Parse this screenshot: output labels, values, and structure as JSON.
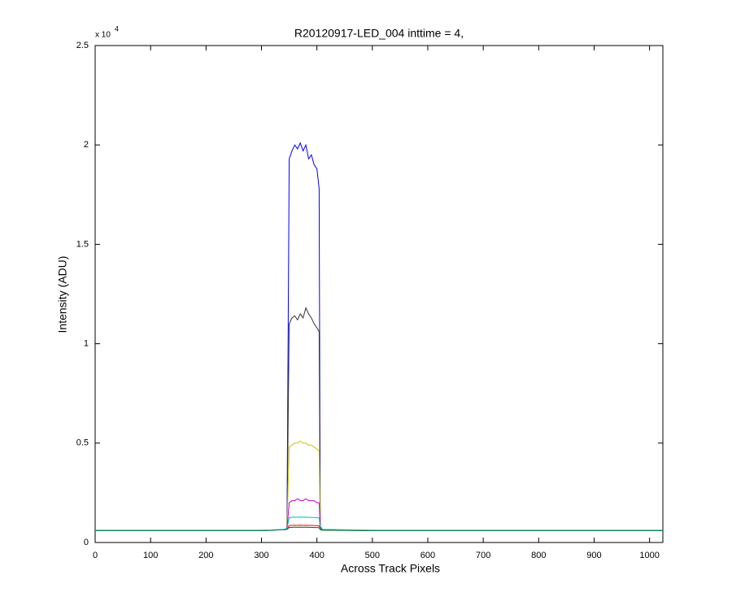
{
  "chart_data": {
    "type": "line",
    "title": "R20120917-LED_004 inttime = 4,",
    "x_label": "Across Track Pixels",
    "y_label": "Intensity (ADU)",
    "y_multiplier": "x 10",
    "y_exponent": "4",
    "x": [
      0,
      100,
      200,
      300,
      340,
      346,
      350,
      355,
      360,
      365,
      370,
      375,
      380,
      385,
      390,
      395,
      400,
      404,
      406,
      410,
      500,
      600,
      700,
      800,
      900,
      1024
    ],
    "series": [
      {
        "color": "#0000ff",
        "values": [
          0.06,
          0.06,
          0.06,
          0.06,
          0.065,
          0.07,
          1.93,
          1.97,
          2.0,
          1.98,
          2.01,
          1.97,
          2.0,
          1.93,
          1.95,
          1.9,
          1.88,
          1.78,
          0.08,
          0.065,
          0.06,
          0.06,
          0.06,
          0.06,
          0.06,
          0.06
        ]
      },
      {
        "color": "#333333",
        "values": [
          0.06,
          0.06,
          0.06,
          0.06,
          0.065,
          0.07,
          1.1,
          1.13,
          1.14,
          1.12,
          1.15,
          1.13,
          1.18,
          1.15,
          1.13,
          1.1,
          1.08,
          1.06,
          0.075,
          0.065,
          0.06,
          0.06,
          0.06,
          0.06,
          0.06,
          0.06
        ]
      },
      {
        "color": "#c8c800",
        "values": [
          0.06,
          0.06,
          0.06,
          0.06,
          0.065,
          0.07,
          0.48,
          0.49,
          0.5,
          0.5,
          0.51,
          0.5,
          0.5,
          0.49,
          0.49,
          0.48,
          0.47,
          0.46,
          0.07,
          0.065,
          0.06,
          0.06,
          0.06,
          0.06,
          0.06,
          0.06
        ]
      },
      {
        "color": "#bf00bf",
        "values": [
          0.06,
          0.06,
          0.06,
          0.06,
          0.065,
          0.07,
          0.2,
          0.21,
          0.21,
          0.22,
          0.21,
          0.21,
          0.22,
          0.21,
          0.21,
          0.21,
          0.2,
          0.2,
          0.07,
          0.065,
          0.06,
          0.06,
          0.06,
          0.06,
          0.06,
          0.06
        ]
      },
      {
        "color": "#ff0000",
        "values": [
          0.06,
          0.06,
          0.06,
          0.06,
          0.065,
          0.068,
          0.085,
          0.086,
          0.087,
          0.086,
          0.087,
          0.086,
          0.087,
          0.086,
          0.086,
          0.085,
          0.085,
          0.084,
          0.066,
          0.063,
          0.06,
          0.06,
          0.06,
          0.06,
          0.06,
          0.06
        ]
      },
      {
        "color": "#006400",
        "values": [
          0.06,
          0.06,
          0.06,
          0.06,
          0.064,
          0.066,
          0.075,
          0.076,
          0.077,
          0.076,
          0.077,
          0.076,
          0.077,
          0.076,
          0.076,
          0.075,
          0.075,
          0.074,
          0.064,
          0.062,
          0.06,
          0.06,
          0.06,
          0.06,
          0.06,
          0.06
        ]
      },
      {
        "color": "#00bfbf",
        "values": [
          0.062,
          0.062,
          0.062,
          0.062,
          0.066,
          0.07,
          0.125,
          0.127,
          0.128,
          0.127,
          0.128,
          0.127,
          0.128,
          0.127,
          0.126,
          0.126,
          0.125,
          0.124,
          0.07,
          0.066,
          0.062,
          0.062,
          0.062,
          0.062,
          0.062,
          0.062
        ]
      }
    ],
    "xlim": [
      0,
      1024
    ],
    "xticks": [
      0,
      100,
      200,
      300,
      400,
      500,
      600,
      700,
      800,
      900,
      1000
    ],
    "ylim": [
      0,
      2.5
    ],
    "yticks": [
      0,
      0.5,
      1,
      1.5,
      2,
      2.5
    ]
  }
}
